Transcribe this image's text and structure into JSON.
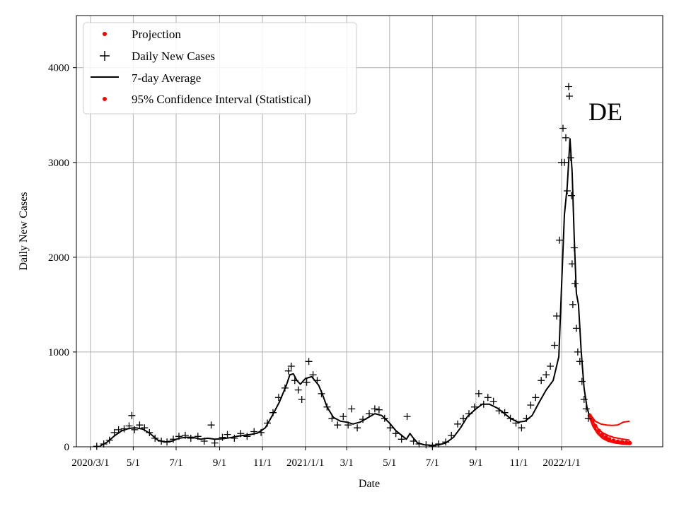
{
  "chart_data": {
    "type": "line",
    "xlabel": "Date",
    "ylabel": "Daily New Cases",
    "annotation": "DE",
    "xlim": [
      "2020-02-10",
      "2022-05-25"
    ],
    "ylim": [
      0,
      4550
    ],
    "grid": true,
    "x_ticks": [
      {
        "date": "2020-03-01",
        "label": "2020/3/1"
      },
      {
        "date": "2020-05-01",
        "label": "5/1"
      },
      {
        "date": "2020-07-01",
        "label": "7/1"
      },
      {
        "date": "2020-09-01",
        "label": "9/1"
      },
      {
        "date": "2020-11-01",
        "label": "11/1"
      },
      {
        "date": "2021-01-01",
        "label": "2021/1/1"
      },
      {
        "date": "2021-03-01",
        "label": "3/1"
      },
      {
        "date": "2021-05-01",
        "label": "5/1"
      },
      {
        "date": "2021-07-01",
        "label": "7/1"
      },
      {
        "date": "2021-09-01",
        "label": "9/1"
      },
      {
        "date": "2021-11-01",
        "label": "11/1"
      },
      {
        "date": "2022-01-01",
        "label": "2022/1/1"
      }
    ],
    "y_ticks": [
      0,
      1000,
      2000,
      3000,
      4000
    ],
    "legend": {
      "position": "upper-left",
      "entries": [
        {
          "label": "Projection",
          "marker": "dot",
          "color": "#ff0000"
        },
        {
          "label": "Daily New Cases",
          "marker": "plus",
          "color": "#000000"
        },
        {
          "label": "7-day Average",
          "marker": "line",
          "color": "#000000"
        },
        {
          "label": "95% Confidence Interval (Statistical)",
          "marker": "dot",
          "color": "#ff0000"
        }
      ]
    },
    "series": [
      {
        "name": "7-day Average",
        "style": "line",
        "color": "#000000",
        "points": [
          [
            "2020-03-15",
            10
          ],
          [
            "2020-03-25",
            50
          ],
          [
            "2020-04-05",
            120
          ],
          [
            "2020-04-15",
            170
          ],
          [
            "2020-04-25",
            195
          ],
          [
            "2020-05-05",
            200
          ],
          [
            "2020-05-15",
            185
          ],
          [
            "2020-05-25",
            140
          ],
          [
            "2020-06-05",
            70
          ],
          [
            "2020-06-15",
            50
          ],
          [
            "2020-06-25",
            60
          ],
          [
            "2020-07-05",
            90
          ],
          [
            "2020-07-15",
            100
          ],
          [
            "2020-07-25",
            100
          ],
          [
            "2020-08-05",
            80
          ],
          [
            "2020-08-15",
            90
          ],
          [
            "2020-08-25",
            80
          ],
          [
            "2020-09-05",
            85
          ],
          [
            "2020-09-15",
            95
          ],
          [
            "2020-09-25",
            110
          ],
          [
            "2020-10-05",
            120
          ],
          [
            "2020-10-15",
            130
          ],
          [
            "2020-10-25",
            145
          ],
          [
            "2020-11-05",
            200
          ],
          [
            "2020-11-15",
            330
          ],
          [
            "2020-11-25",
            470
          ],
          [
            "2020-12-05",
            650
          ],
          [
            "2020-12-10",
            760
          ],
          [
            "2020-12-15",
            770
          ],
          [
            "2020-12-20",
            700
          ],
          [
            "2020-12-25",
            660
          ],
          [
            "2021-01-01",
            720
          ],
          [
            "2021-01-10",
            740
          ],
          [
            "2021-01-20",
            650
          ],
          [
            "2021-01-25",
            560
          ],
          [
            "2021-02-01",
            420
          ],
          [
            "2021-02-10",
            310
          ],
          [
            "2021-02-20",
            270
          ],
          [
            "2021-03-01",
            260
          ],
          [
            "2021-03-10",
            240
          ],
          [
            "2021-03-20",
            260
          ],
          [
            "2021-04-01",
            310
          ],
          [
            "2021-04-10",
            350
          ],
          [
            "2021-04-20",
            330
          ],
          [
            "2021-05-01",
            250
          ],
          [
            "2021-05-10",
            170
          ],
          [
            "2021-05-20",
            110
          ],
          [
            "2021-05-25",
            80
          ],
          [
            "2021-05-30",
            140
          ],
          [
            "2021-06-03",
            100
          ],
          [
            "2021-06-10",
            40
          ],
          [
            "2021-06-20",
            20
          ],
          [
            "2021-06-30",
            15
          ],
          [
            "2021-07-10",
            20
          ],
          [
            "2021-07-20",
            40
          ],
          [
            "2021-07-31",
            100
          ],
          [
            "2021-08-10",
            200
          ],
          [
            "2021-08-20",
            320
          ],
          [
            "2021-09-01",
            400
          ],
          [
            "2021-09-10",
            450
          ],
          [
            "2021-09-20",
            450
          ],
          [
            "2021-10-01",
            410
          ],
          [
            "2021-10-10",
            360
          ],
          [
            "2021-10-20",
            300
          ],
          [
            "2021-10-31",
            260
          ],
          [
            "2021-11-10",
            270
          ],
          [
            "2021-11-20",
            330
          ],
          [
            "2021-11-30",
            470
          ],
          [
            "2021-12-10",
            600
          ],
          [
            "2021-12-20",
            700
          ],
          [
            "2021-12-28",
            950
          ],
          [
            "2022-01-01",
            1700
          ],
          [
            "2022-01-05",
            2450
          ],
          [
            "2022-01-09",
            2750
          ],
          [
            "2022-01-13",
            3250
          ],
          [
            "2022-01-16",
            2900
          ],
          [
            "2022-01-19",
            2200
          ],
          [
            "2022-01-22",
            1620
          ],
          [
            "2022-01-25",
            1500
          ],
          [
            "2022-01-29",
            1000
          ],
          [
            "2022-02-02",
            620
          ],
          [
            "2022-02-06",
            420
          ],
          [
            "2022-02-09",
            340
          ]
        ]
      },
      {
        "name": "Daily New Cases",
        "style": "plus",
        "color": "#000000",
        "points": [
          [
            "2020-03-10",
            5
          ],
          [
            "2020-03-20",
            30
          ],
          [
            "2020-03-28",
            70
          ],
          [
            "2020-04-04",
            150
          ],
          [
            "2020-04-10",
            180
          ],
          [
            "2020-04-18",
            190
          ],
          [
            "2020-04-25",
            220
          ],
          [
            "2020-04-29",
            330
          ],
          [
            "2020-05-03",
            180
          ],
          [
            "2020-05-10",
            230
          ],
          [
            "2020-05-17",
            200
          ],
          [
            "2020-05-24",
            150
          ],
          [
            "2020-06-01",
            90
          ],
          [
            "2020-06-10",
            60
          ],
          [
            "2020-06-18",
            50
          ],
          [
            "2020-06-27",
            80
          ],
          [
            "2020-07-05",
            110
          ],
          [
            "2020-07-14",
            120
          ],
          [
            "2020-07-22",
            90
          ],
          [
            "2020-08-01",
            110
          ],
          [
            "2020-08-10",
            60
          ],
          [
            "2020-08-20",
            230
          ],
          [
            "2020-08-25",
            40
          ],
          [
            "2020-09-05",
            100
          ],
          [
            "2020-09-12",
            130
          ],
          [
            "2020-09-22",
            90
          ],
          [
            "2020-10-01",
            140
          ],
          [
            "2020-10-10",
            110
          ],
          [
            "2020-10-20",
            160
          ],
          [
            "2020-10-30",
            150
          ],
          [
            "2020-11-08",
            250
          ],
          [
            "2020-11-16",
            360
          ],
          [
            "2020-11-24",
            520
          ],
          [
            "2020-12-03",
            620
          ],
          [
            "2020-12-08",
            800
          ],
          [
            "2020-12-12",
            850
          ],
          [
            "2020-12-17",
            700
          ],
          [
            "2020-12-22",
            600
          ],
          [
            "2020-12-27",
            500
          ],
          [
            "2021-01-03",
            680
          ],
          [
            "2021-01-06",
            900
          ],
          [
            "2021-01-12",
            760
          ],
          [
            "2021-01-18",
            700
          ],
          [
            "2021-01-24",
            560
          ],
          [
            "2021-02-01",
            420
          ],
          [
            "2021-02-08",
            300
          ],
          [
            "2021-02-16",
            230
          ],
          [
            "2021-02-24",
            320
          ],
          [
            "2021-03-03",
            230
          ],
          [
            "2021-03-08",
            400
          ],
          [
            "2021-03-16",
            200
          ],
          [
            "2021-03-24",
            290
          ],
          [
            "2021-04-02",
            350
          ],
          [
            "2021-04-10",
            400
          ],
          [
            "2021-04-16",
            390
          ],
          [
            "2021-04-24",
            300
          ],
          [
            "2021-05-02",
            200
          ],
          [
            "2021-05-10",
            140
          ],
          [
            "2021-05-18",
            80
          ],
          [
            "2021-05-26",
            320
          ],
          [
            "2021-06-04",
            60
          ],
          [
            "2021-06-12",
            30
          ],
          [
            "2021-06-22",
            20
          ],
          [
            "2021-07-01",
            10
          ],
          [
            "2021-07-10",
            30
          ],
          [
            "2021-07-20",
            50
          ],
          [
            "2021-07-28",
            120
          ],
          [
            "2021-08-06",
            240
          ],
          [
            "2021-08-14",
            300
          ],
          [
            "2021-08-22",
            350
          ],
          [
            "2021-08-30",
            420
          ],
          [
            "2021-09-05",
            560
          ],
          [
            "2021-09-12",
            450
          ],
          [
            "2021-09-18",
            520
          ],
          [
            "2021-09-26",
            480
          ],
          [
            "2021-10-04",
            380
          ],
          [
            "2021-10-12",
            360
          ],
          [
            "2021-10-20",
            300
          ],
          [
            "2021-10-28",
            250
          ],
          [
            "2021-11-05",
            200
          ],
          [
            "2021-11-12",
            300
          ],
          [
            "2021-11-18",
            440
          ],
          [
            "2021-11-25",
            520
          ],
          [
            "2021-12-03",
            700
          ],
          [
            "2021-12-10",
            760
          ],
          [
            "2021-12-16",
            850
          ],
          [
            "2021-12-22",
            1070
          ],
          [
            "2021-12-25",
            1380
          ],
          [
            "2021-12-29",
            2180
          ],
          [
            "2022-01-01",
            3000
          ],
          [
            "2022-01-03",
            3360
          ],
          [
            "2022-01-05",
            3000
          ],
          [
            "2022-01-07",
            3260
          ],
          [
            "2022-01-09",
            2700
          ],
          [
            "2022-01-11",
            3800
          ],
          [
            "2022-01-12",
            3700
          ],
          [
            "2022-01-14",
            3050
          ],
          [
            "2022-01-15",
            2650
          ],
          [
            "2022-01-16",
            1930
          ],
          [
            "2022-01-17",
            1500
          ],
          [
            "2022-01-19",
            2100
          ],
          [
            "2022-01-20",
            1720
          ],
          [
            "2022-01-22",
            1250
          ],
          [
            "2022-01-24",
            1000
          ],
          [
            "2022-01-27",
            900
          ],
          [
            "2022-01-30",
            690
          ],
          [
            "2022-02-02",
            500
          ],
          [
            "2022-02-05",
            400
          ],
          [
            "2022-02-08",
            300
          ]
        ]
      },
      {
        "name": "Projection",
        "style": "dots",
        "color": "#ff0000",
        "points": [
          [
            "2022-02-10",
            330
          ],
          [
            "2022-02-14",
            270
          ],
          [
            "2022-02-18",
            220
          ],
          [
            "2022-02-23",
            170
          ],
          [
            "2022-02-28",
            130
          ],
          [
            "2022-03-05",
            100
          ],
          [
            "2022-03-10",
            80
          ],
          [
            "2022-03-16",
            65
          ],
          [
            "2022-03-22",
            55
          ],
          [
            "2022-03-28",
            50
          ],
          [
            "2022-04-03",
            45
          ],
          [
            "2022-04-08",
            40
          ]
        ]
      },
      {
        "name": "95% Confidence Interval (Statistical)",
        "style": "dots",
        "color": "#ff0000",
        "bands": [
          [
            [
              "2022-02-10",
              350
            ],
            [
              "2022-02-18",
              270
            ],
            [
              "2022-02-26",
              240
            ],
            [
              "2022-03-06",
              230
            ],
            [
              "2022-03-14",
              225
            ],
            [
              "2022-03-22",
              230
            ],
            [
              "2022-03-30",
              260
            ],
            [
              "2022-04-08",
              270
            ]
          ],
          [
            [
              "2022-02-10",
              340
            ],
            [
              "2022-02-16",
              250
            ],
            [
              "2022-02-22",
              190
            ],
            [
              "2022-02-28",
              150
            ],
            [
              "2022-03-08",
              120
            ],
            [
              "2022-03-16",
              100
            ],
            [
              "2022-03-26",
              85
            ],
            [
              "2022-04-08",
              70
            ]
          ],
          [
            [
              "2022-02-10",
              320
            ],
            [
              "2022-02-15",
              230
            ],
            [
              "2022-02-21",
              160
            ],
            [
              "2022-02-28",
              110
            ],
            [
              "2022-03-08",
              75
            ],
            [
              "2022-03-18",
              55
            ],
            [
              "2022-03-28",
              45
            ],
            [
              "2022-04-08",
              35
            ]
          ],
          [
            [
              "2022-02-10",
              300
            ],
            [
              "2022-02-15",
              210
            ],
            [
              "2022-02-21",
              140
            ],
            [
              "2022-02-28",
              90
            ],
            [
              "2022-03-08",
              60
            ],
            [
              "2022-03-18",
              40
            ],
            [
              "2022-03-28",
              30
            ],
            [
              "2022-04-08",
              25
            ]
          ]
        ]
      }
    ]
  }
}
